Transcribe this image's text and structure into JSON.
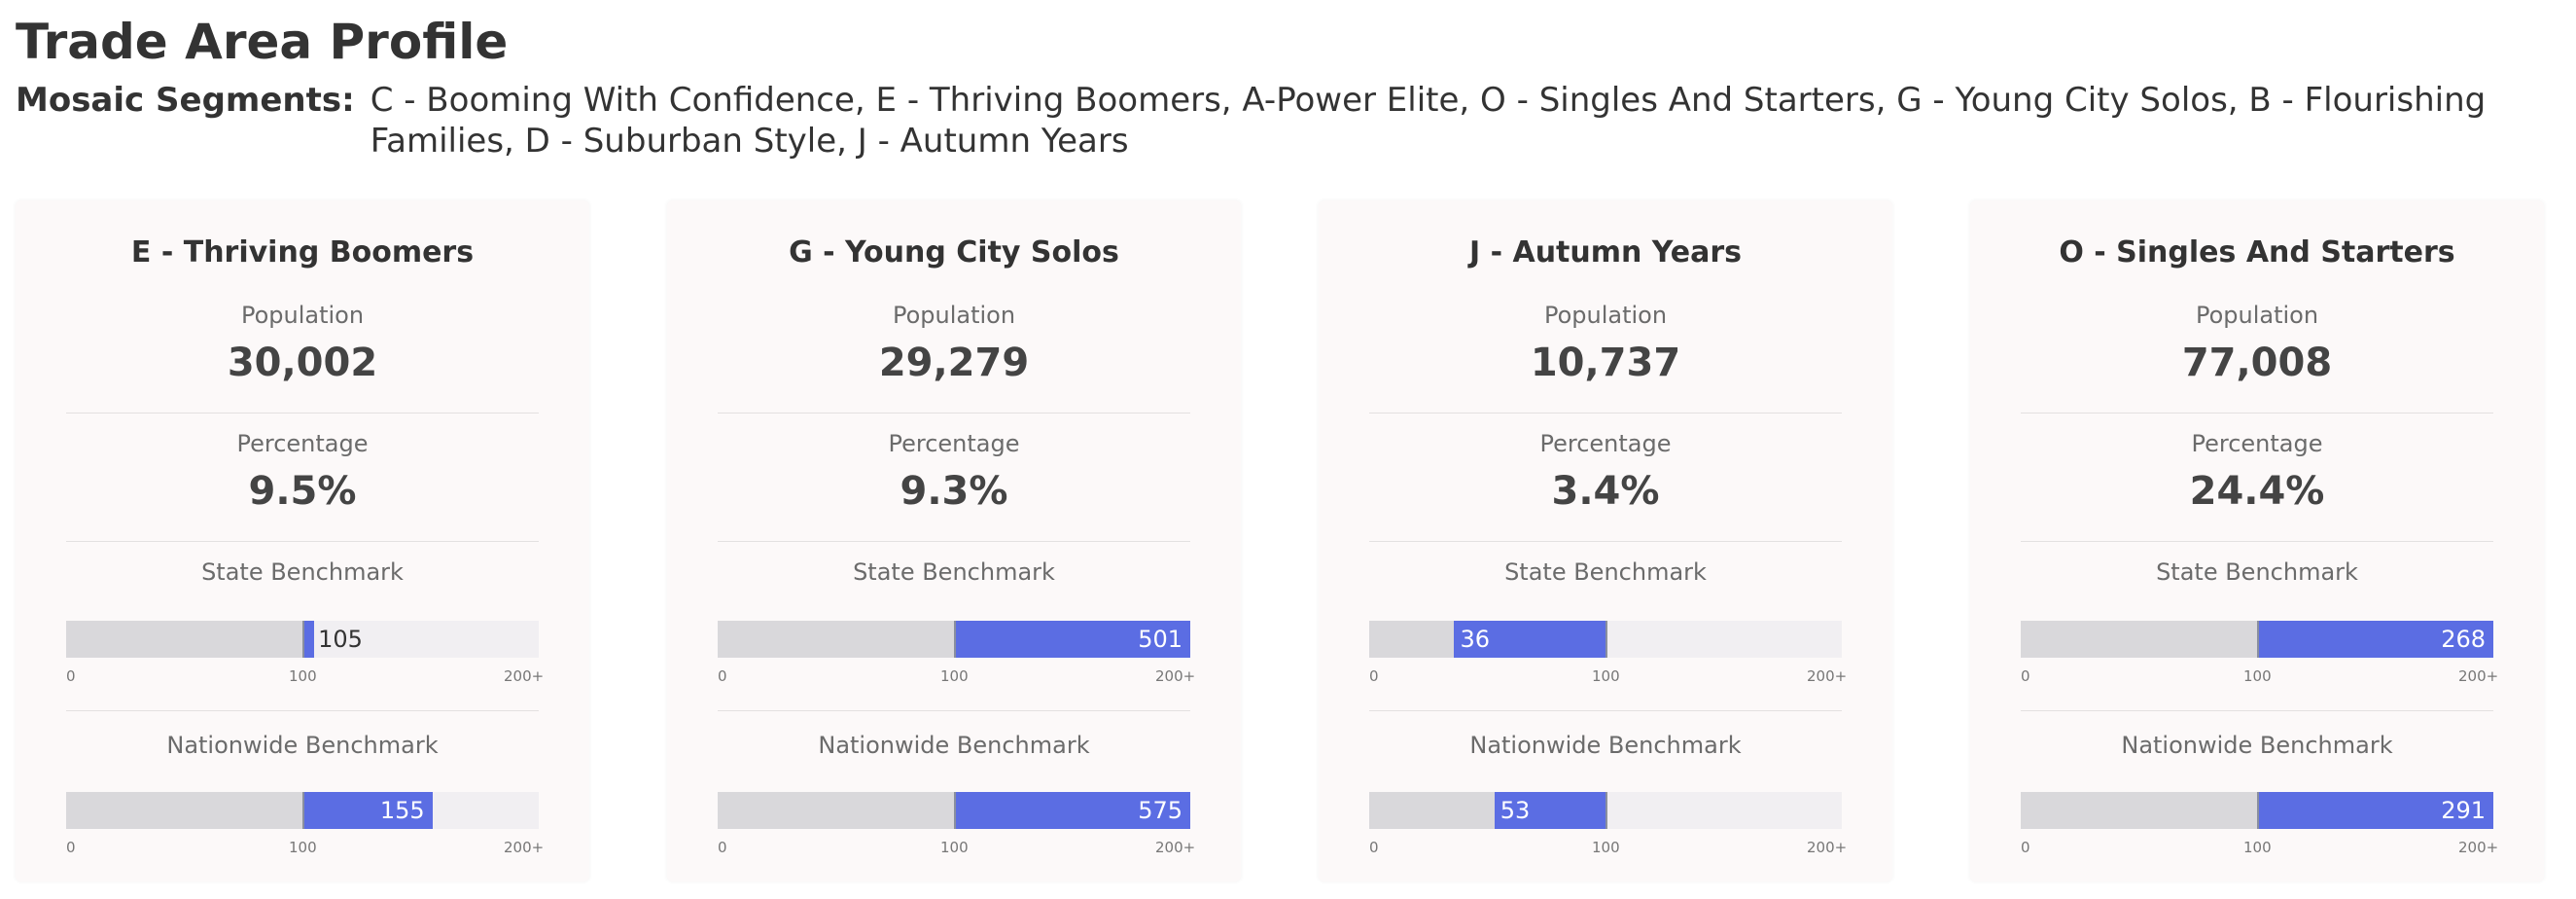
{
  "page_title": "Trade Area Profile",
  "mosaic": {
    "label": "Mosaic Segments:",
    "value": "C - Booming With Confidence, E - Thriving Boomers, A-Power Elite, O - Singles And Starters, G - Young City Solos, B - Flourishing Families, D - Suburban Style, J - Autumn Years"
  },
  "labels": {
    "population": "Population",
    "percentage": "Percentage",
    "state_benchmark": "State Benchmark",
    "nationwide_benchmark": "Nationwide Benchmark"
  },
  "ticks": {
    "min": "0",
    "mid": "100",
    "max": "200+"
  },
  "benchmark_scale": {
    "min": 0,
    "base": 100,
    "max": 200
  },
  "colors": {
    "fill": "#5b6de3",
    "base": "#d9d8db",
    "track": "#f1eff2",
    "card": "#fcf9f9"
  },
  "cards": [
    {
      "title": "E - Thriving Boomers",
      "population": "30,002",
      "percentage": "9.5%",
      "state_benchmark": 105,
      "nationwide_benchmark": 155
    },
    {
      "title": "G - Young City Solos",
      "population": "29,279",
      "percentage": "9.3%",
      "state_benchmark": 501,
      "nationwide_benchmark": 575
    },
    {
      "title": "J - Autumn Years",
      "population": "10,737",
      "percentage": "3.4%",
      "state_benchmark": 36,
      "nationwide_benchmark": 53
    },
    {
      "title": "O - Singles And Starters",
      "population": "77,008",
      "percentage": "24.4%",
      "state_benchmark": 268,
      "nationwide_benchmark": 291
    }
  ]
}
